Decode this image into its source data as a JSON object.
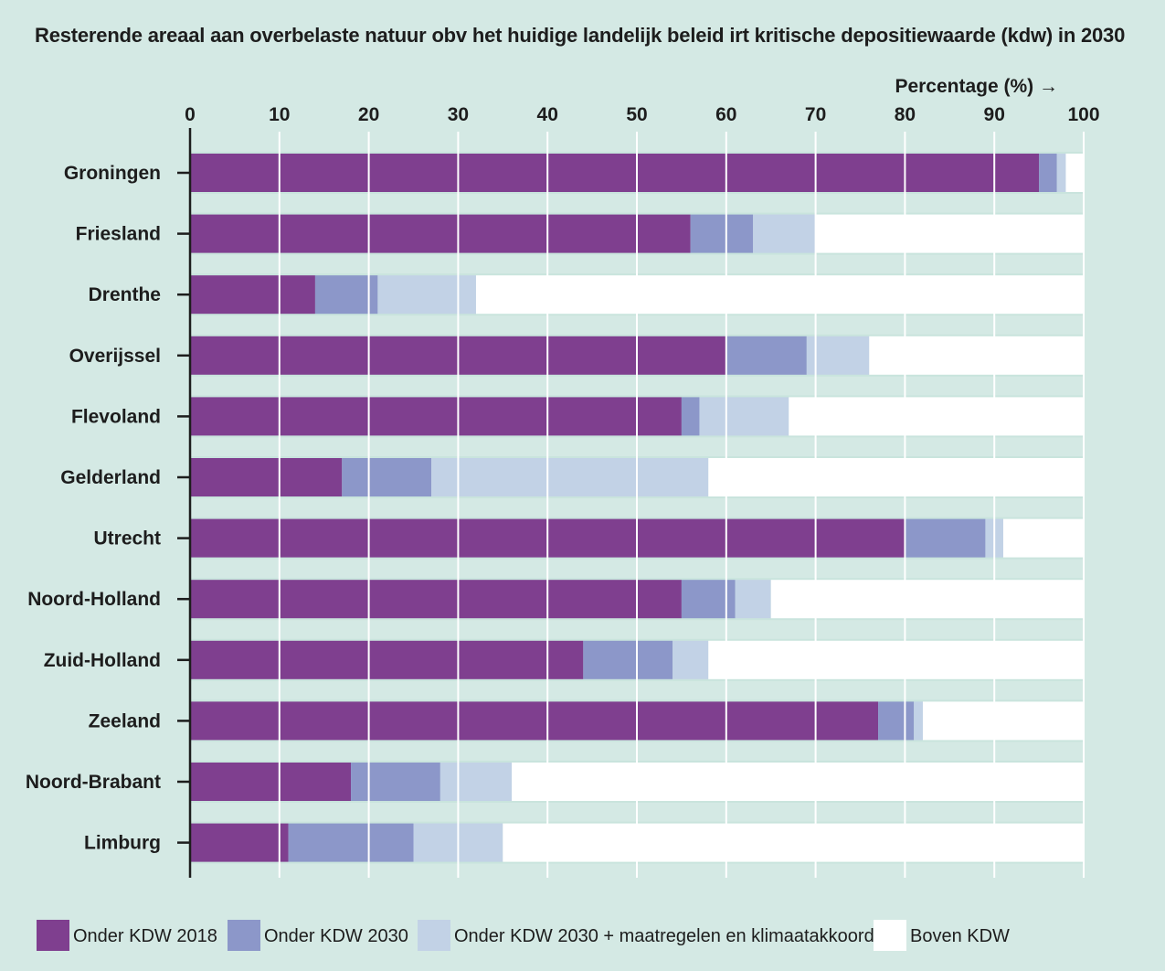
{
  "chart_data": {
    "type": "bar",
    "orientation": "horizontal",
    "stacked": true,
    "title": "Resterende areaal aan overbelaste natuur obv het huidige landelijk beleid irt kritische depositiewaarde (kdw) in 2030",
    "xlabel": "Percentage (%) →",
    "ylabel": "",
    "xlim": [
      0,
      100
    ],
    "xticks": [
      "0",
      "10",
      "20",
      "30",
      "40",
      "50",
      "60",
      "70",
      "80",
      "90",
      "100"
    ],
    "grid": "vertical",
    "legend_position": "bottom",
    "categories": [
      "Groningen",
      "Friesland",
      "Drenthe",
      "Overijssel",
      "Flevoland",
      "Gelderland",
      "Utrecht",
      "Noord-Holland",
      "Zuid-Holland",
      "Zeeland",
      "Noord-Brabant",
      "Limburg"
    ],
    "series": [
      {
        "name": "Onder KDW 2018",
        "color": "#7f3f8f",
        "values": [
          95,
          56,
          14,
          60,
          55,
          17,
          80,
          55,
          44,
          77,
          18,
          11
        ]
      },
      {
        "name": "Onder KDW 2030",
        "color": "#8c97c9",
        "values": [
          2,
          7,
          7,
          9,
          2,
          10,
          9,
          6,
          10,
          4,
          10,
          14
        ]
      },
      {
        "name": "Onder KDW 2030 + maatregelen en klimaatakkoord",
        "color": "#c2d2e6",
        "values": [
          1,
          7,
          11,
          7,
          10,
          31,
          2,
          4,
          4,
          1,
          8,
          10
        ]
      },
      {
        "name": "Boven KDW",
        "color": "#ffffff",
        "values": [
          2,
          30,
          68,
          24,
          33,
          42,
          9,
          35,
          42,
          18,
          64,
          65
        ]
      }
    ]
  }
}
